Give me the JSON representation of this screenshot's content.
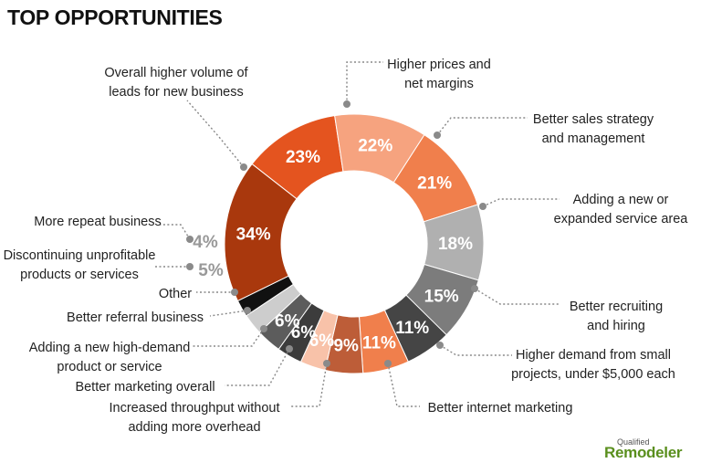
{
  "title": "TOP OPPORTUNITIES",
  "chart_data": {
    "type": "pie",
    "title": "TOP OPPORTUNITIES",
    "slices": [
      {
        "label": "Higher prices and net margins",
        "value": 23,
        "display": "23%",
        "color": "#e4541f",
        "text_color": "#ffffff"
      },
      {
        "label": "Better sales strategy and management",
        "value": 22,
        "display": "22%",
        "color": "#f6a37f",
        "text_color": "#ffffff"
      },
      {
        "label": "Adding a new or expanded service area",
        "value": 21,
        "display": "21%",
        "color": "#f07f4c",
        "text_color": "#ffffff"
      },
      {
        "label": "Better recruiting and hiring",
        "value": 18,
        "display": "18%",
        "color": "#b0b0b0",
        "text_color": "#ffffff"
      },
      {
        "label": "Higher demand from small projects, under $5,000 each",
        "value": 15,
        "display": "15%",
        "color": "#7c7c7c",
        "text_color": "#ffffff"
      },
      {
        "label": "Better internet marketing",
        "value": 11,
        "display": "11%",
        "color": "#454545",
        "text_color": "#ffffff"
      },
      {
        "label": "Increased throughput without adding more overhead",
        "value": 11,
        "display": "11%",
        "color": "#f07f4c",
        "text_color": "#ffffff"
      },
      {
        "label": "Better marketing overall",
        "value": 9,
        "display": "9%",
        "color": "#bd5d38",
        "text_color": "#ffffff"
      },
      {
        "label": "Adding a new high-demand product or service",
        "value": 6,
        "display": "6%",
        "color": "#f8c2a9",
        "text_color": "#ffffff"
      },
      {
        "label": "Better referral business",
        "value": 6,
        "display": "6%",
        "color": "#3c3c3c",
        "text_color": "#ffffff"
      },
      {
        "label": "Other",
        "value": 6,
        "display": "6%",
        "color": "#5c5c5c",
        "text_color": "#ffffff"
      },
      {
        "label": "Discontinuing unprofitable products or services",
        "value": 5,
        "display": "5%",
        "color": "#cdcdcd",
        "text_color": "#999999"
      },
      {
        "label": "More repeat business",
        "value": 4,
        "display": "4%",
        "color": "#111111",
        "text_color": "#999999"
      },
      {
        "label": "Overall higher volume of leads for new business",
        "value": 34,
        "display": "34%",
        "color": "#a9380d",
        "text_color": "#ffffff"
      }
    ],
    "callout_lines": [
      [
        "Higher prices and",
        "net margins"
      ],
      [
        "Better sales strategy",
        "and management"
      ],
      [
        "Adding a new or",
        "expanded service area"
      ],
      [
        "Better recruiting",
        "and hiring"
      ],
      [
        "Higher demand from small",
        "projects, under $5,000 each"
      ],
      [
        "Better internet marketing"
      ],
      [
        "Increased throughput without",
        "adding more overhead"
      ],
      [
        "Better marketing overall"
      ],
      [
        "Adding a new high-demand",
        "product or service"
      ],
      [
        "Better referral business"
      ],
      [
        "Other"
      ],
      [
        "Discontinuing unprofitable",
        "products or services"
      ],
      [
        "More repeat business"
      ],
      [
        "Overall higher volume of",
        "leads for new business"
      ]
    ]
  },
  "brand": {
    "small": "Qualified",
    "main": "Remodeler"
  }
}
